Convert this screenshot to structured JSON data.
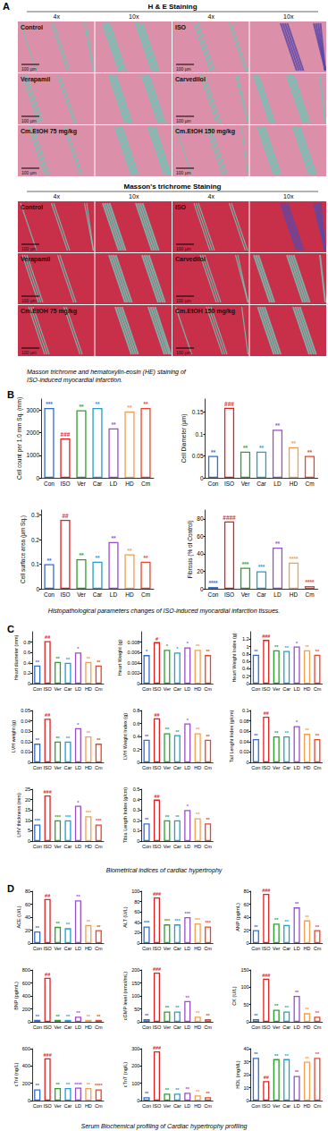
{
  "figure": {
    "panel_A": {
      "letter": "A",
      "sections": [
        {
          "title": "H & E Staining",
          "magnifications": [
            "4x",
            "10x",
            "4x",
            "10x"
          ],
          "rows": [
            [
              "Control",
              "ISO"
            ],
            [
              "Verapamil",
              "Carvedilol"
            ],
            [
              "Cm.EtOH 75 mg/kg",
              "Cm.EtOH 150 mg/kg"
            ]
          ]
        },
        {
          "title": "Masson's trichrome Staining",
          "magnifications": [
            "4x",
            "10x",
            "4x",
            "10x"
          ],
          "rows": [
            [
              "Control",
              "ISO"
            ],
            [
              "Verapamil",
              "Carvedilol"
            ],
            [
              "Cm.EtOH 75 mg/kg",
              "Cm.EtOH 150 mg/kg"
            ]
          ]
        }
      ],
      "scale_bar": "100 µm",
      "caption": "Masson trichrome and hematoxylin-eosin (HE) staining of ISO-induced myocardial infarction."
    },
    "panels": [
      {
        "letter": "B",
        "caption": "Histopathological parameters changes of ISO-induced myocardial infarction tissues."
      },
      {
        "letter": "C",
        "caption": "Biometrical indices of cardiac hypertrophy"
      },
      {
        "letter": "D",
        "caption": "Serum Biochemical profiling of Cardiac hypertrophy profiling"
      }
    ]
  },
  "chart_data": [
    {
      "panel": "B",
      "type": "bar",
      "y_label": "Cell count per 1.0 mm Sq. (mm)",
      "categories": [
        "Con",
        "ISO",
        "Ver",
        "Car",
        "LD",
        "HD",
        "Cm"
      ],
      "values": [
        3100,
        1750,
        3000,
        3100,
        2200,
        2950,
        3100
      ],
      "annotations": [
        "***",
        "###",
        "**",
        "**",
        "**",
        "**",
        "**"
      ],
      "colors": [
        "#2f6fd0",
        "#e02020",
        "#2ca02c",
        "#1f9fd0",
        "#9b4dca",
        "#f0a050",
        "#e8452c"
      ],
      "ylim": [
        0,
        3500
      ],
      "yticks": [
        0,
        1000,
        2000,
        3000
      ]
    },
    {
      "panel": "B",
      "type": "bar",
      "y_label": "Cell Diameter (µm)",
      "categories": [
        "Con",
        "ISO",
        "Ver",
        "Car",
        "LD",
        "HD",
        "Cm"
      ],
      "values": [
        0.05,
        0.16,
        0.06,
        0.06,
        0.11,
        0.07,
        0.05
      ],
      "annotations": [
        "**",
        "###",
        "**",
        "**",
        "**",
        "**",
        "**"
      ],
      "colors": [
        "#2f6fd0",
        "#e02020",
        "#2ca02c",
        "#1f9fd0",
        "#9b4dca",
        "#f0a050",
        "#e8452c"
      ],
      "ylim": [
        0,
        0.18
      ],
      "yticks": [
        0,
        0.05,
        0.1,
        0.15
      ]
    },
    {
      "panel": "B",
      "type": "bar",
      "y_label": "Cell surface area (µm Sq.)",
      "categories": [
        "Con",
        "ISO",
        "Ver",
        "Car",
        "LD",
        "HD",
        "Cm"
      ],
      "values": [
        0.1,
        0.28,
        0.12,
        0.11,
        0.19,
        0.14,
        0.11
      ],
      "annotations": [
        "**",
        "##",
        "**",
        "**",
        "**",
        "**",
        "**"
      ],
      "colors": [
        "#2f6fd0",
        "#e02020",
        "#2ca02c",
        "#1f9fd0",
        "#9b4dca",
        "#f0a050",
        "#e8452c"
      ],
      "ylim": [
        0,
        0.32
      ],
      "yticks": [
        0,
        0.1,
        0.2,
        0.3
      ]
    },
    {
      "panel": "B",
      "type": "bar",
      "y_label": "Fibrosis (% of Control)",
      "categories": [
        "Con",
        "ISO",
        "Ver",
        "Car",
        "LD",
        "HD",
        "Cm"
      ],
      "values": [
        2,
        77,
        24,
        20,
        47,
        30,
        3
      ],
      "annotations": [
        "****",
        "####",
        "***",
        "***",
        "**",
        "****",
        "****"
      ],
      "colors": [
        "#2f6fd0",
        "#e02020",
        "#2ca02c",
        "#1f9fd0",
        "#9b4dca",
        "#f0a050",
        "#e8452c"
      ],
      "ylim": [
        0,
        90
      ],
      "yticks": [
        0,
        20,
        40,
        60,
        80
      ]
    },
    {
      "panel": "C",
      "type": "bar",
      "y_label": "Heart diameter (mm)",
      "categories": [
        "Con",
        "ISO",
        "Ver",
        "Car",
        "LD",
        "HD",
        "Cm"
      ],
      "values": [
        0.35,
        0.82,
        0.42,
        0.4,
        0.6,
        0.42,
        0.35
      ],
      "annotations": [
        "**",
        "##",
        "**",
        "**",
        "*",
        "**",
        "**"
      ],
      "colors": [
        "#2f6fd0",
        "#e02020",
        "#2ca02c",
        "#1f9fd0",
        "#9b4dca",
        "#f0a050",
        "#e8452c"
      ],
      "ylim": [
        0,
        1
      ],
      "yticks": [
        0,
        0.2,
        0.4,
        0.6,
        0.8
      ]
    },
    {
      "panel": "C",
      "type": "bar",
      "y_label": "Heart Weight (g)",
      "categories": [
        "Con",
        "ISO",
        "Ver",
        "Car",
        "LD",
        "HD",
        "Cm"
      ],
      "values": [
        0.0055,
        0.008,
        0.0065,
        0.006,
        0.007,
        0.0065,
        0.0055
      ],
      "annotations": [
        "*",
        "#",
        "*",
        "*",
        "*",
        "**",
        "**"
      ],
      "colors": [
        "#2f6fd0",
        "#e02020",
        "#2ca02c",
        "#1f9fd0",
        "#9b4dca",
        "#f0a050",
        "#e8452c"
      ],
      "ylim": [
        0,
        0.01
      ],
      "yticks": [
        0,
        0.002,
        0.004,
        0.006,
        0.008
      ]
    },
    {
      "panel": "C",
      "type": "bar",
      "y_label": "Heart Weight Index (g)",
      "categories": [
        "Con",
        "ISO",
        "Ver",
        "Car",
        "LD",
        "HD",
        "Cm"
      ],
      "values": [
        0.78,
        1.18,
        0.9,
        0.88,
        1.0,
        0.9,
        0.78
      ],
      "annotations": [
        "**",
        "###",
        "**",
        "**",
        "*",
        "**",
        "**"
      ],
      "colors": [
        "#2f6fd0",
        "#e02020",
        "#2ca02c",
        "#1f9fd0",
        "#9b4dca",
        "#f0a050",
        "#e8452c"
      ],
      "ylim": [
        0,
        1.4
      ],
      "yticks": [
        0,
        0.2,
        0.4,
        0.6,
        0.8,
        1,
        1.2
      ]
    },
    {
      "panel": "C",
      "type": "bar",
      "y_label": "LVH weight (g)",
      "categories": [
        "Con",
        "ISO",
        "Ver",
        "Car",
        "LD",
        "HD",
        "Cm"
      ],
      "values": [
        0.018,
        0.042,
        0.02,
        0.02,
        0.033,
        0.025,
        0.018
      ],
      "annotations": [
        "**",
        "##",
        "**",
        "**",
        "*",
        "**",
        "**"
      ],
      "colors": [
        "#2f6fd0",
        "#e02020",
        "#2ca02c",
        "#1f9fd0",
        "#9b4dca",
        "#f0a050",
        "#e8452c"
      ],
      "ylim": [
        0,
        0.05
      ],
      "yticks": [
        0,
        0.01,
        0.02,
        0.03,
        0.04,
        0.05
      ]
    },
    {
      "panel": "C",
      "type": "bar",
      "y_label": "LVH Weight Index (g)",
      "categories": [
        "Con",
        "ISO",
        "Ver",
        "Car",
        "LD",
        "HD",
        "Cm"
      ],
      "values": [
        0.35,
        0.68,
        0.45,
        0.42,
        0.6,
        0.45,
        0.35
      ],
      "annotations": [
        "**",
        "##",
        "**",
        "**",
        "*",
        "**",
        "**"
      ],
      "colors": [
        "#2f6fd0",
        "#e02020",
        "#2ca02c",
        "#1f9fd0",
        "#9b4dca",
        "#f0a050",
        "#e8452c"
      ],
      "ylim": [
        0,
        0.8
      ],
      "yticks": [
        0,
        0.2,
        0.4,
        0.6,
        0.8
      ]
    },
    {
      "panel": "C",
      "type": "bar",
      "y_label": "Tail Lenght Index (g/cm)",
      "categories": [
        "Con",
        "ISO",
        "Ver",
        "Car",
        "LD",
        "HD",
        "Cm"
      ],
      "values": [
        0.045,
        0.088,
        0.05,
        0.05,
        0.07,
        0.055,
        0.045
      ],
      "annotations": [
        "**",
        "##",
        "**",
        "**",
        "*",
        "**",
        "**"
      ],
      "colors": [
        "#2f6fd0",
        "#e02020",
        "#2ca02c",
        "#1f9fd0",
        "#9b4dca",
        "#f0a050",
        "#e8452c"
      ],
      "ylim": [
        0,
        0.1
      ],
      "yticks": [
        0,
        0.02,
        0.04,
        0.06,
        0.08,
        0.1
      ]
    },
    {
      "panel": "C",
      "type": "bar",
      "y_label": "LHV thickness (mm)",
      "categories": [
        "Con",
        "ISO",
        "Ver",
        "Car",
        "LD",
        "HD",
        "Cm"
      ],
      "values": [
        8,
        22,
        10,
        10,
        17,
        12,
        8
      ],
      "annotations": [
        "***",
        "###",
        "***",
        "***",
        "*",
        "***",
        "***"
      ],
      "colors": [
        "#2f6fd0",
        "#e02020",
        "#2ca02c",
        "#1f9fd0",
        "#9b4dca",
        "#f0a050",
        "#e8452c"
      ],
      "ylim": [
        0,
        25
      ],
      "yticks": [
        0,
        5,
        10,
        15,
        20,
        25
      ]
    },
    {
      "panel": "C",
      "type": "bar",
      "y_label": "Tibia Length Index (g/cm)",
      "categories": [
        "Con",
        "ISO",
        "Ver",
        "Car",
        "LD",
        "HD",
        "Cm"
      ],
      "values": [
        0.17,
        0.4,
        0.2,
        0.2,
        0.3,
        0.22,
        0.17
      ],
      "annotations": [
        "**",
        "##",
        "**",
        "**",
        "*",
        "**",
        "**"
      ],
      "colors": [
        "#2f6fd0",
        "#e02020",
        "#2ca02c",
        "#1f9fd0",
        "#9b4dca",
        "#f0a050",
        "#e8452c"
      ],
      "ylim": [
        0,
        0.5
      ],
      "yticks": [
        0,
        0.1,
        0.2,
        0.3,
        0.4,
        0.5
      ]
    },
    {
      "panel": "D",
      "type": "bar",
      "y_label": "ACE (U/L)",
      "categories": [
        "Con",
        "ISO",
        "Ver",
        "Car",
        "LD",
        "HD",
        "Cm"
      ],
      "values": [
        18,
        68,
        25,
        23,
        66,
        28,
        20
      ],
      "annotations": [
        "**",
        "##",
        "**",
        "**",
        "**",
        "**",
        "**"
      ],
      "colors": [
        "#2f6fd0",
        "#e02020",
        "#2ca02c",
        "#1f9fd0",
        "#9b4dca",
        "#f0a050",
        "#e8452c"
      ],
      "ylim": [
        0,
        80
      ],
      "yticks": [
        0,
        20,
        40,
        60,
        80
      ]
    },
    {
      "panel": "D",
      "type": "bar",
      "y_label": "ALT (U/L)",
      "categories": [
        "Con",
        "ISO",
        "Ver",
        "Car",
        "LD",
        "HD",
        "Cm"
      ],
      "values": [
        32,
        88,
        36,
        36,
        50,
        38,
        32
      ],
      "annotations": [
        "***",
        "###",
        "***",
        "***",
        "***",
        "***",
        "***"
      ],
      "colors": [
        "#2f6fd0",
        "#e02020",
        "#2ca02c",
        "#1f9fd0",
        "#9b4dca",
        "#f0a050",
        "#e8452c"
      ],
      "ylim": [
        0,
        100
      ],
      "yticks": [
        0,
        20,
        40,
        60,
        80,
        100
      ]
    },
    {
      "panel": "D",
      "type": "bar",
      "y_label": "ANP (pg/mL)",
      "categories": [
        "Con",
        "ISO",
        "Ver",
        "Car",
        "LD",
        "HD",
        "Cm"
      ],
      "values": [
        20,
        76,
        30,
        28,
        55,
        35,
        20
      ],
      "annotations": [
        "**",
        "###",
        "**",
        "**",
        "**",
        "**",
        "**"
      ],
      "colors": [
        "#2f6fd0",
        "#e02020",
        "#2ca02c",
        "#1f9fd0",
        "#9b4dca",
        "#f0a050",
        "#e8452c"
      ],
      "ylim": [
        0,
        80
      ],
      "yticks": [
        0,
        20,
        40,
        60,
        80
      ]
    },
    {
      "panel": "D",
      "type": "bar",
      "y_label": "BNP (pg/mL)",
      "categories": [
        "Con",
        "ISO",
        "Ver",
        "Car",
        "LD",
        "HD",
        "Cm"
      ],
      "values": [
        30,
        680,
        30,
        30,
        80,
        30,
        30
      ],
      "annotations": [
        "**",
        "##",
        "**",
        "**",
        "**",
        "**",
        "**"
      ],
      "colors": [
        "#2f6fd0",
        "#e02020",
        "#2ca02c",
        "#1f9fd0",
        "#9b4dca",
        "#f0a050",
        "#e8452c"
      ],
      "ylim": [
        0,
        800
      ],
      "yticks": [
        0,
        200,
        400,
        600,
        800
      ]
    },
    {
      "panel": "D",
      "type": "bar",
      "y_label": "cGMP level (nmol/mL)",
      "categories": [
        "Con",
        "ISO",
        "Ver",
        "Car",
        "LD",
        "HD",
        "Cm"
      ],
      "values": [
        10,
        190,
        40,
        40,
        80,
        20,
        10
      ],
      "annotations": [
        "**",
        "###",
        "**",
        "**",
        "**",
        "**",
        "**"
      ],
      "colors": [
        "#2f6fd0",
        "#e02020",
        "#2ca02c",
        "#1f9fd0",
        "#9b4dca",
        "#f0a050",
        "#e8452c"
      ],
      "ylim": [
        0,
        200
      ],
      "yticks": [
        0,
        50,
        100,
        150,
        200
      ]
    },
    {
      "panel": "D",
      "type": "bar",
      "y_label": "CK (U/L)",
      "categories": [
        "Con",
        "ISO",
        "Ver",
        "Car",
        "LD",
        "HD",
        "Cm"
      ],
      "values": [
        8,
        125,
        35,
        30,
        75,
        25,
        15
      ],
      "annotations": [
        "**",
        "###",
        "**",
        "**",
        "**",
        "**",
        "**"
      ],
      "colors": [
        "#2f6fd0",
        "#e02020",
        "#2ca02c",
        "#1f9fd0",
        "#9b4dca",
        "#f0a050",
        "#e8452c"
      ],
      "ylim": [
        0,
        150
      ],
      "yticks": [
        0,
        50,
        100,
        150
      ]
    },
    {
      "panel": "D",
      "type": "bar",
      "y_label": "cTnI (ng/L)",
      "categories": [
        "Con",
        "ISO",
        "Ver",
        "Car",
        "LD",
        "HD",
        "Cm"
      ],
      "values": [
        130,
        490,
        145,
        145,
        150,
        145,
        130
      ],
      "annotations": [
        "**",
        "###",
        "**",
        "**",
        "****",
        "**",
        "****"
      ],
      "colors": [
        "#2f6fd0",
        "#e02020",
        "#2ca02c",
        "#1f9fd0",
        "#9b4dca",
        "#f0a050",
        "#e8452c"
      ],
      "ylim": [
        0,
        600
      ],
      "yticks": [
        0,
        200,
        400,
        600
      ]
    },
    {
      "panel": "D",
      "type": "bar",
      "y_label": "cTnT (ng/L)",
      "categories": [
        "Con",
        "ISO",
        "Ver",
        "Car",
        "LD",
        "HD",
        "Cm"
      ],
      "values": [
        20,
        285,
        40,
        40,
        45,
        30,
        20
      ],
      "annotations": [
        "**",
        "###",
        "**",
        "**",
        "**",
        "**",
        "**"
      ],
      "colors": [
        "#2f6fd0",
        "#e02020",
        "#2ca02c",
        "#1f9fd0",
        "#9b4dca",
        "#f0a050",
        "#e8452c"
      ],
      "ylim": [
        0,
        300
      ],
      "yticks": [
        0,
        100,
        200,
        300
      ]
    },
    {
      "panel": "D",
      "type": "bar",
      "y_label": "HDL (mg/dL)",
      "categories": [
        "Con",
        "ISO",
        "Ver",
        "Car",
        "LD",
        "HD",
        "Cm"
      ],
      "values": [
        33,
        15,
        32,
        32,
        19,
        30,
        33
      ],
      "annotations": [
        "**",
        "##",
        "**",
        "**",
        "**",
        "**",
        "**"
      ],
      "colors": [
        "#2f6fd0",
        "#e02020",
        "#2ca02c",
        "#1f9fd0",
        "#9b4dca",
        "#f0a050",
        "#e8452c"
      ],
      "ylim": [
        0,
        40
      ],
      "yticks": [
        0,
        10,
        20,
        30,
        40
      ]
    }
  ]
}
